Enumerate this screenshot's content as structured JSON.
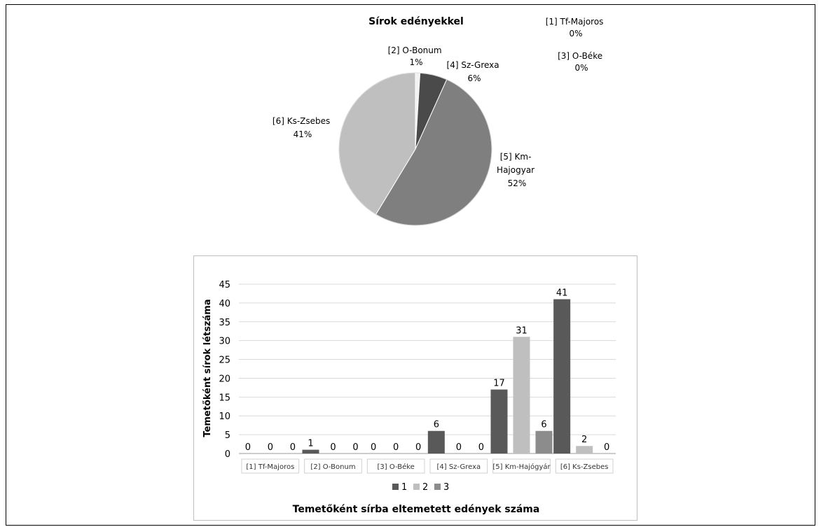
{
  "pie_chart": {
    "title": "Sírok edényekkel",
    "slices": [
      {
        "name": "[1] Tf-Majoros",
        "value": 0,
        "pct_label": "0%",
        "color": "#ffffff"
      },
      {
        "name": "[2] O-Bonum",
        "value": 1,
        "pct_label": "1%",
        "color": "#f2f2f2"
      },
      {
        "name": "[3] O-Béke",
        "value": 0,
        "pct_label": "0%",
        "color": "#ffffff"
      },
      {
        "name": "[4] Sz-Grexa",
        "value": 6,
        "pct_label": "6%",
        "color": "#4a4a4a"
      },
      {
        "name": "[5] Km-Hajogyar",
        "value": 54,
        "pct_label": "52%",
        "color": "#7f7f7f"
      },
      {
        "name": "[6] Ks-Zsebes",
        "value": 43,
        "pct_label": "41%",
        "color": "#bfbfbf"
      }
    ],
    "label_lines": {
      "tf_majoros": [
        "[1] Tf-Majoros",
        "0%"
      ],
      "o_bonum": [
        "[2] O-Bonum",
        "1%"
      ],
      "o_beke": [
        "[3] O-Béke",
        "0%"
      ],
      "sz_grexa": [
        "[4] Sz-Grexa",
        "6%"
      ],
      "km_hajogyar": [
        "[5] Km-",
        "Hajogyar",
        "52%"
      ],
      "ks_zsebes": [
        "[6] Ks-Zsebes",
        "41%"
      ]
    }
  },
  "chart_data": [
    {
      "type": "pie",
      "title": "Sírok edényekkel",
      "categories": [
        "[1] Tf-Majoros",
        "[2] O-Bonum",
        "[3] O-Béke",
        "[4] Sz-Grexa",
        "[5] Km-Hajogyar",
        "[6] Ks-Zsebes"
      ],
      "values": [
        0,
        1,
        0,
        6,
        54,
        43
      ],
      "value_labels": [
        "0%",
        "1%",
        "0%",
        "6%",
        "52%",
        "41%"
      ]
    },
    {
      "type": "bar",
      "title": "Temetőként sírba eltemetett edények száma",
      "ylabel": "Temetőként  sírok  létszáma",
      "xlabel": "",
      "categories": [
        "[1] Tf-Majoros",
        "[2] O-Bonum",
        "[3] O-Béke",
        "[4] Sz-Grexa",
        "[5] Km-Hajógyár",
        "[6] Ks-Zsebes"
      ],
      "series": [
        {
          "name": "1",
          "values": [
            0,
            1,
            0,
            6,
            17,
            41
          ],
          "color": "#595959"
        },
        {
          "name": "2",
          "values": [
            0,
            0,
            0,
            0,
            31,
            2
          ],
          "color": "#bfbfbf"
        },
        {
          "name": "3",
          "values": [
            0,
            0,
            0,
            0,
            6,
            0
          ],
          "color": "#8c8c8c"
        }
      ],
      "ylim": [
        0,
        45
      ],
      "yticks": [
        "0",
        "5",
        "10",
        "15",
        "20",
        "25",
        "30",
        "35",
        "40",
        "45"
      ],
      "grid": true,
      "legend_position": "bottom"
    }
  ]
}
